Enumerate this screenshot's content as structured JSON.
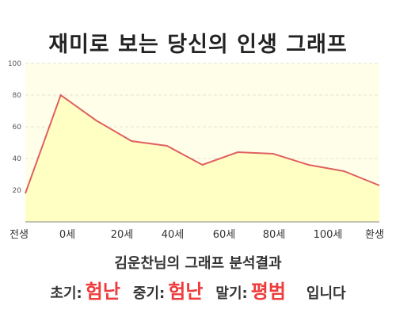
{
  "title": "재미로 보는 당신의 인생 그래프",
  "summary": {
    "subject": "김운찬님의 그래프 분석결과",
    "stages": [
      {
        "label": "초기:",
        "value": "험난"
      },
      {
        "label": "중기:",
        "value": "험난"
      },
      {
        "label": "말기:",
        "value": "평범"
      }
    ],
    "suffix": "입니다"
  },
  "colors": {
    "plot_bg": "#ffffe9",
    "area_fill": "#ffffc4",
    "line": "#e06060",
    "grid": "#e3e3cf",
    "stage_value": "#ee3b3b"
  },
  "chart_data": {
    "type": "area",
    "title": "재미로 보는 당신의 인생 그래프",
    "xlabel": "",
    "ylabel": "",
    "ylim": [
      0,
      100
    ],
    "yticks": [
      20,
      40,
      60,
      80,
      100
    ],
    "x_labels": [
      "전생",
      "0세",
      "20세",
      "40세",
      "60세",
      "80세",
      "100세",
      "환생"
    ],
    "values": [
      18,
      80,
      64,
      51,
      48,
      36,
      44,
      43,
      36,
      32,
      23
    ],
    "grid": true,
    "legend": "none"
  }
}
